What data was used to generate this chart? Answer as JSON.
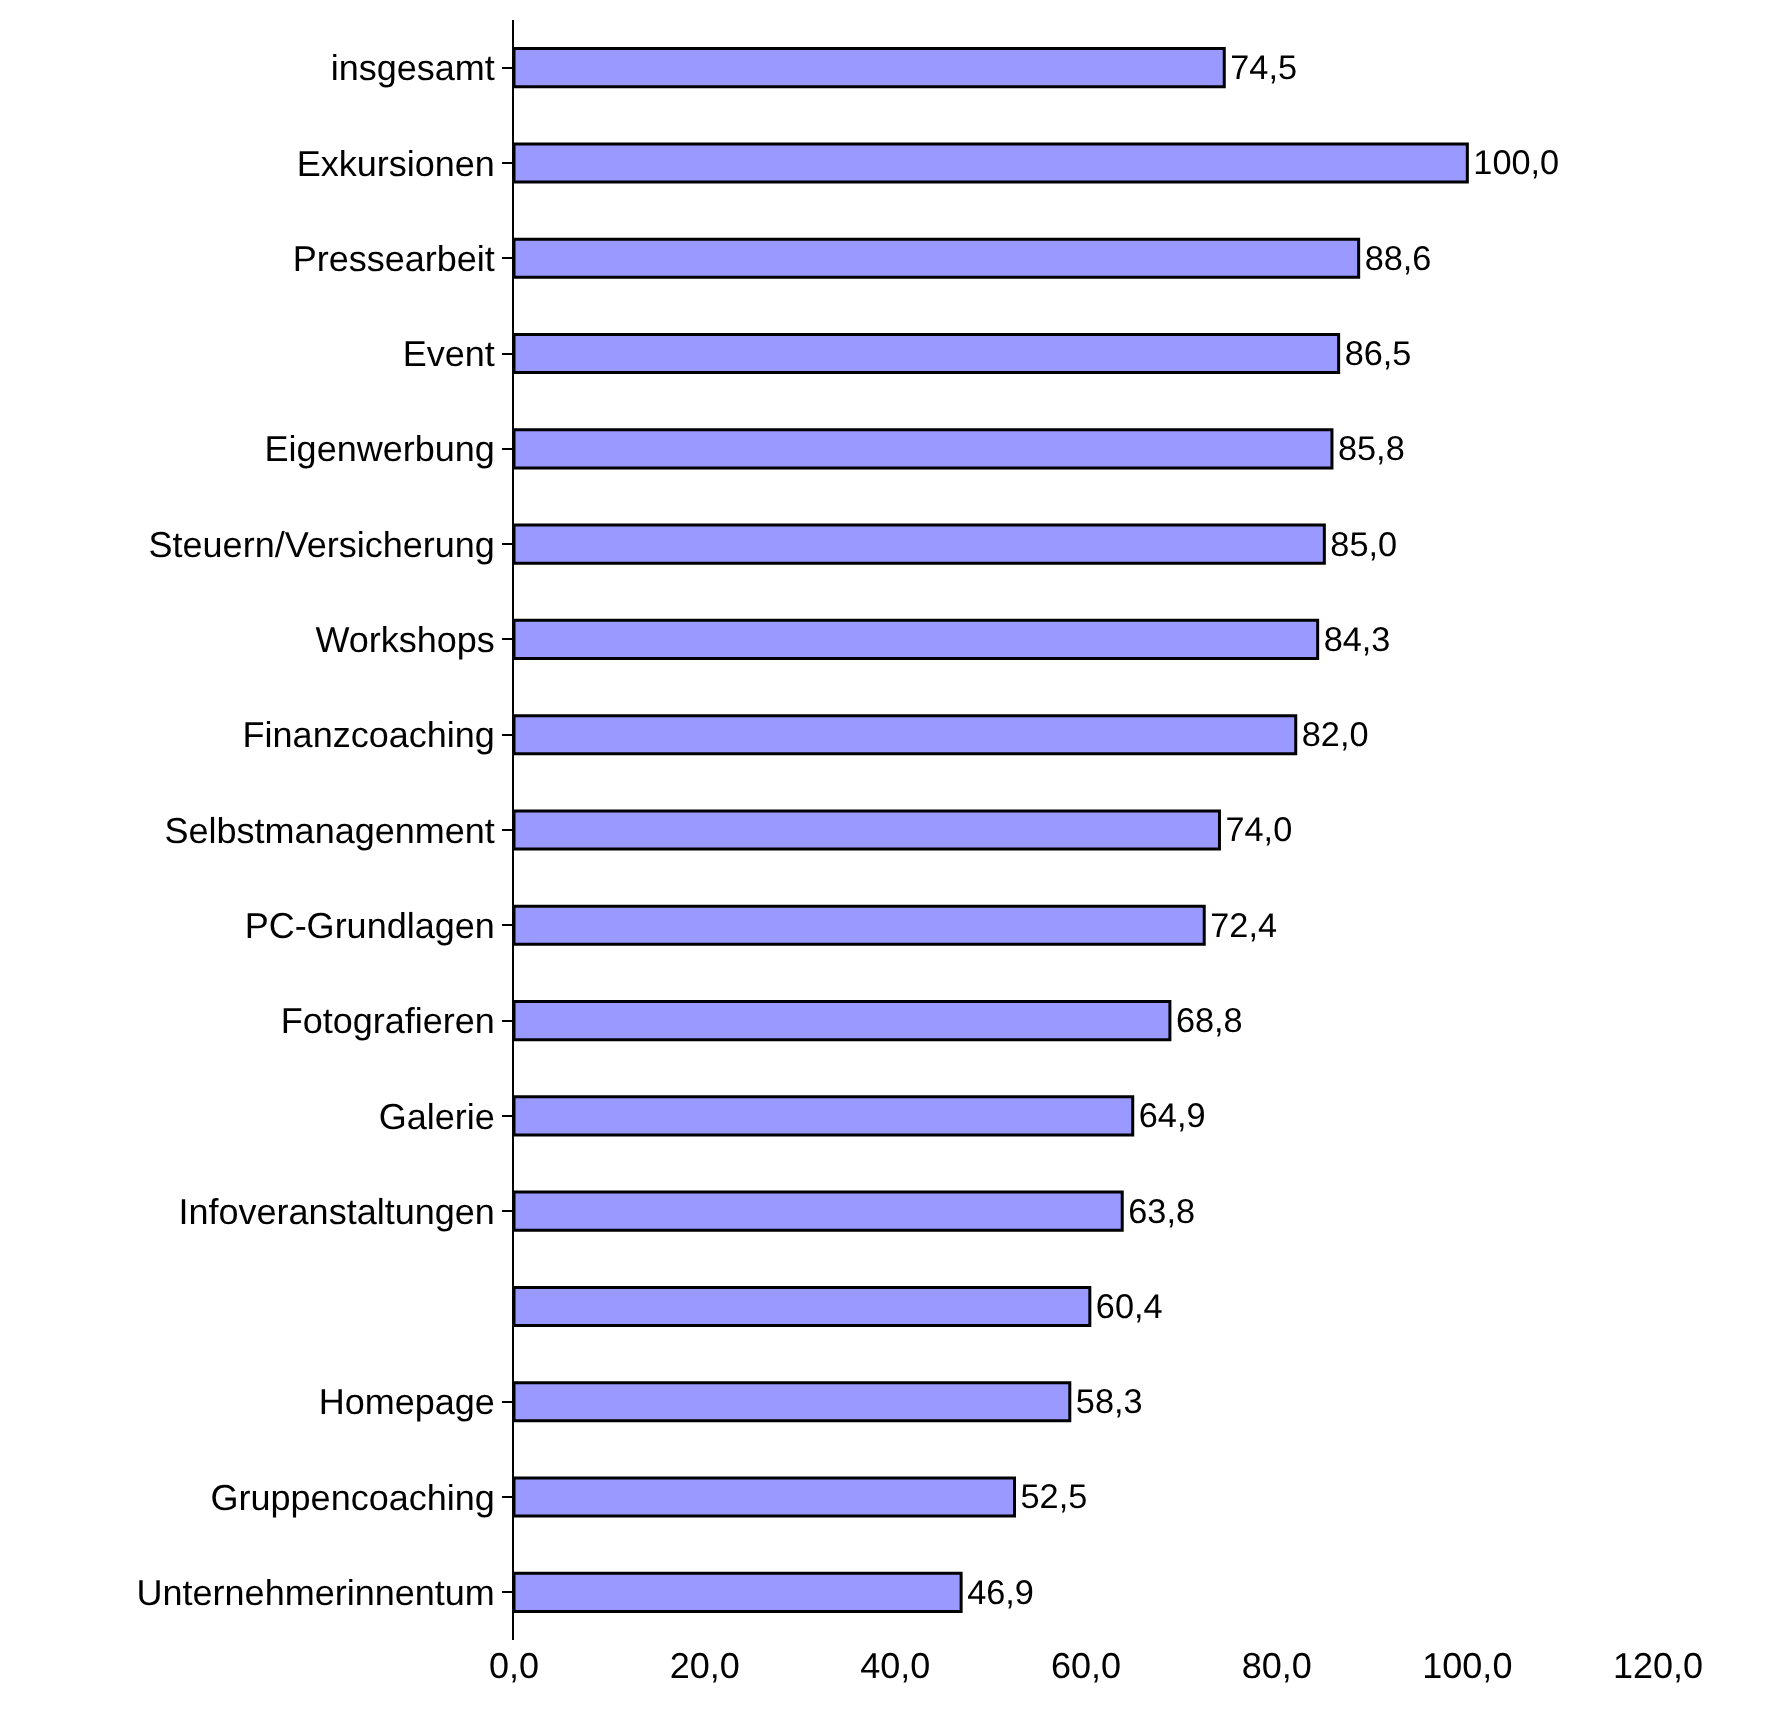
{
  "chart_data": {
    "type": "bar",
    "orientation": "horizontal",
    "categories": [
      "insgesamt",
      "Exkursionen",
      "Pressearbeit",
      "Event",
      "Eigenwerbung",
      "Steuern/Versicherung",
      "Workshops",
      "Finanzcoaching",
      "Selbstmanagenment",
      "PC-Grundlagen",
      "Fotografieren",
      "Galerie",
      "Infoveranstaltungen",
      null,
      "Homepage",
      "Gruppencoaching",
      "Unternehmerinnentum"
    ],
    "values": [
      74.5,
      100.0,
      88.6,
      86.5,
      85.8,
      85.0,
      84.3,
      82.0,
      74.0,
      72.4,
      68.8,
      64.9,
      63.8,
      60.4,
      58.3,
      52.5,
      46.9
    ],
    "value_labels": [
      "74,5",
      "100,0",
      "88,6",
      "86,5",
      "85,8",
      "85,0",
      "84,3",
      "82,0",
      "74,0",
      "72,4",
      "68,8",
      "64,9",
      "63,8",
      "60,4",
      "58,3",
      "52,5",
      "46,9"
    ],
    "color": "#9999ff",
    "xlim": [
      0,
      120
    ],
    "xticks": [
      {
        "value": 0,
        "label": "0,0"
      },
      {
        "value": 20,
        "label": "20,0"
      },
      {
        "value": 40,
        "label": "40,0"
      },
      {
        "value": 60,
        "label": "60,0"
      },
      {
        "value": 80,
        "label": "80,0"
      },
      {
        "value": 100,
        "label": "100,0"
      },
      {
        "value": 120,
        "label": "120,0"
      }
    ],
    "grid": false
  }
}
